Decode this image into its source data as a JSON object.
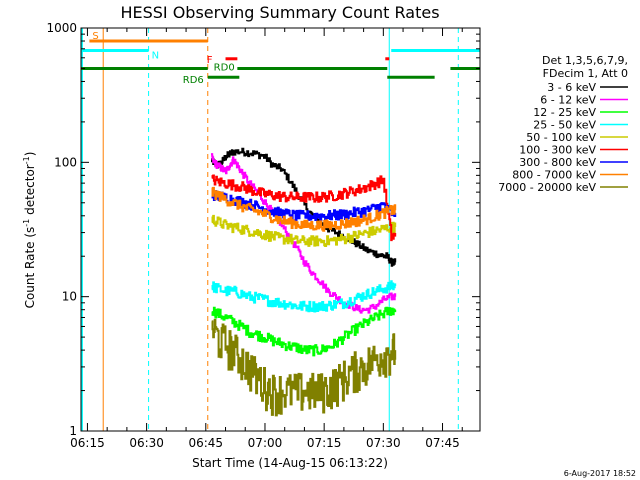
{
  "chart_data": {
    "type": "line",
    "title": "HESSI Observing Summary Count Rates",
    "xlabel": "Start Time (14-Aug-15 06:13:22)",
    "ylabel_main": "Count Rate (s",
    "ylabel_sup1": "-1",
    "ylabel_mid": " detector",
    "ylabel_sup2": "-1",
    "ylabel_end": ")",
    "x_ticks": [
      "06:15",
      "06:30",
      "06:45",
      "07:00",
      "07:15",
      "07:30",
      "07:45"
    ],
    "x_tick_minutes": [
      15,
      30,
      45,
      60,
      75,
      90,
      105
    ],
    "xlim_minutes": [
      13.37,
      114.5
    ],
    "y_scale": "log",
    "ylim": [
      1,
      1000
    ],
    "y_ticks": [
      "1",
      "10",
      "100",
      "1000"
    ],
    "legend_header": [
      "Det 1,3,5,6,7,9,",
      "FDecim 1, Att 0"
    ],
    "timestamp": "6-Aug-2017 18:52",
    "flags": {
      "S": {
        "label": "S",
        "color": "#ff8000",
        "start": 15,
        "end": 45,
        "level": 800
      },
      "N": {
        "label": "N",
        "color": "#00ffff",
        "start": 13.4,
        "end": 30.5,
        "level": 680
      },
      "F": {
        "label": "F",
        "color": "#ff0000"
      },
      "RD0": {
        "label": "RD0",
        "color": "#008000"
      },
      "RD6": {
        "label": "RD6",
        "color": "#008000"
      }
    },
    "series": [
      {
        "name": "3 - 6 keV",
        "color": "#000000",
        "x": [
          46.5,
          47,
          48,
          49,
          50,
          51,
          52,
          54,
          56,
          58,
          60,
          62,
          64,
          66,
          68,
          70,
          72,
          74,
          76,
          78,
          80,
          82,
          84,
          86,
          88,
          90,
          91,
          92,
          93
        ],
        "y": [
          105,
          100,
          95,
          100,
          110,
          115,
          120,
          120,
          118,
          115,
          110,
          95,
          90,
          75,
          60,
          48,
          40,
          36,
          32,
          30,
          28,
          26,
          24,
          22,
          21,
          20,
          20,
          18,
          18
        ]
      },
      {
        "name": "6 - 12 keV",
        "color": "#ff00ff",
        "x": [
          46.5,
          47,
          48,
          49,
          50,
          51,
          52,
          53,
          54,
          56,
          58,
          60,
          62,
          64,
          66,
          68,
          70,
          72,
          74,
          76,
          78,
          80,
          82,
          84,
          86,
          88,
          90,
          92,
          93
        ],
        "y": [
          110,
          100,
          95,
          90,
          85,
          95,
          105,
          95,
          85,
          70,
          60,
          50,
          42,
          35,
          28,
          23,
          18,
          15,
          13,
          11,
          10,
          9,
          8.5,
          8,
          8,
          8.5,
          9.5,
          10,
          10
        ]
      },
      {
        "name": "12 - 25 keV",
        "color": "#00ff00",
        "x": [
          46.5,
          48,
          50,
          52,
          54,
          56,
          58,
          60,
          62,
          64,
          66,
          68,
          70,
          72,
          74,
          76,
          78,
          80,
          82,
          84,
          86,
          88,
          90,
          92,
          93
        ],
        "y": [
          8,
          7.5,
          7,
          6.5,
          6,
          5.5,
          5.2,
          5,
          4.7,
          4.5,
          4.3,
          4.2,
          4,
          4,
          4,
          4.2,
          4.5,
          5,
          5.5,
          6,
          6.5,
          7,
          7.5,
          8,
          8
        ]
      },
      {
        "name": "25 - 50 keV",
        "color": "#00ffff",
        "x": [
          46.5,
          48,
          50,
          52,
          54,
          56,
          58,
          60,
          62,
          64,
          66,
          68,
          70,
          72,
          74,
          76,
          78,
          80,
          82,
          84,
          86,
          88,
          90,
          92,
          93
        ],
        "y": [
          12,
          11.5,
          11,
          11,
          10.5,
          10,
          9.8,
          9.5,
          9.2,
          9,
          8.8,
          8.5,
          8.5,
          8.5,
          8.5,
          8.6,
          8.8,
          9,
          9.5,
          10,
          10.5,
          11,
          11.5,
          12,
          12
        ]
      },
      {
        "name": "50 - 100 keV",
        "color": "#cccc00",
        "x": [
          46.5,
          48,
          50,
          52,
          54,
          56,
          58,
          60,
          62,
          64,
          66,
          68,
          70,
          72,
          74,
          76,
          78,
          80,
          82,
          84,
          86,
          88,
          90,
          92,
          93
        ],
        "y": [
          38,
          36,
          34,
          33,
          32,
          31,
          30,
          29,
          28,
          27,
          27,
          26,
          26,
          26,
          26,
          26,
          26.5,
          27,
          28,
          29,
          30,
          31,
          32,
          33,
          33
        ]
      },
      {
        "name": "100 - 300 keV",
        "color": "#ff0000",
        "x": [
          46.5,
          48,
          50,
          52,
          54,
          56,
          58,
          60,
          62,
          64,
          66,
          68,
          70,
          72,
          74,
          76,
          78,
          80,
          82,
          84,
          86,
          88,
          90,
          92,
          93
        ],
        "y": [
          75,
          72,
          70,
          68,
          66,
          63,
          60,
          58,
          57,
          56,
          55,
          55,
          55,
          55,
          55,
          56,
          57,
          59,
          61,
          63,
          66,
          70,
          74,
          28,
          28
        ]
      },
      {
        "name": "300 - 800 keV",
        "color": "#0000ff",
        "x": [
          46.5,
          48,
          50,
          52,
          54,
          56,
          58,
          60,
          62,
          64,
          66,
          68,
          70,
          72,
          74,
          76,
          78,
          80,
          82,
          84,
          86,
          88,
          90,
          92,
          93
        ],
        "y": [
          58,
          56,
          55,
          53,
          51,
          49,
          47,
          45,
          43,
          42,
          41,
          40,
          40,
          40,
          40,
          40,
          40.5,
          41,
          42,
          43,
          44,
          46,
          48,
          42,
          42
        ]
      },
      {
        "name": "800 - 7000 keV",
        "color": "#ff8000",
        "x": [
          46.5,
          48,
          50,
          52,
          54,
          56,
          58,
          60,
          62,
          64,
          66,
          68,
          70,
          72,
          74,
          76,
          78,
          80,
          82,
          84,
          86,
          88,
          90,
          92,
          93
        ],
        "y": [
          60,
          57,
          53,
          50,
          47,
          45,
          43,
          41,
          39,
          37,
          36,
          35,
          34,
          34,
          34,
          34,
          34.5,
          35,
          36,
          37,
          38,
          40,
          42,
          44,
          44
        ]
      },
      {
        "name": "7000 - 20000 keV",
        "color": "#808000",
        "x": [
          46.5,
          48,
          50,
          52,
          54,
          56,
          58,
          60,
          62,
          64,
          66,
          68,
          70,
          72,
          74,
          76,
          78,
          80,
          82,
          84,
          86,
          88,
          90,
          92,
          93
        ],
        "y": [
          6,
          5,
          4.5,
          4,
          3.5,
          3,
          2.5,
          2.2,
          2,
          2,
          2,
          2,
          2,
          2,
          2,
          2.1,
          2.3,
          2.5,
          2.8,
          3,
          3.2,
          3.5,
          3.8,
          4,
          4
        ]
      }
    ]
  }
}
